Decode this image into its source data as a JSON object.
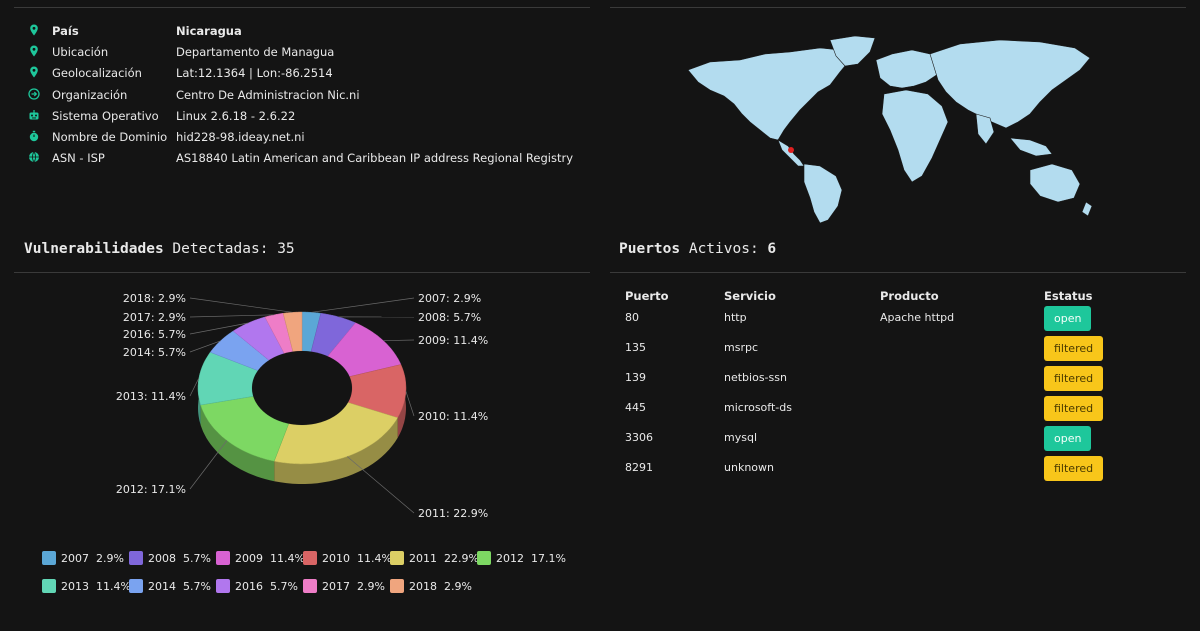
{
  "info": {
    "rows": [
      {
        "icon": "map-marker-icon",
        "label": "País",
        "value": "Nicaragua"
      },
      {
        "icon": "map-marker-icon",
        "label": "Ubicación",
        "value": "Departamento de Managua"
      },
      {
        "icon": "map-marker-icon",
        "label": "Geolocalización",
        "value": "Lat:12.1364 | Lon:-86.2514"
      },
      {
        "icon": "arrow-circle-icon",
        "label": "Organización",
        "value": "Centro De Administracion Nic.ni"
      },
      {
        "icon": "robot-icon",
        "label": "Sistema Operativo",
        "value": "Linux 2.6.18 - 2.6.22"
      },
      {
        "icon": "stopwatch-icon",
        "label": "Nombre de Dominio",
        "value": "hid228-98.ideay.net.ni"
      },
      {
        "icon": "globe-icon",
        "label": "ASN - ISP",
        "value": "AS18840 Latin American and Caribbean IP address Regional Registry"
      }
    ]
  },
  "vuln": {
    "title_bold": "Vulnerabilidades",
    "title_rest": " Detectadas: ",
    "count": "35"
  },
  "ports_section": {
    "title_bold": "Puertos",
    "title_rest": " Activos: ",
    "count": "6"
  },
  "chart_data": {
    "type": "pie",
    "donut": true,
    "categories": [
      "2007",
      "2008",
      "2009",
      "2010",
      "2011",
      "2012",
      "2013",
      "2014",
      "2016",
      "2017",
      "2018"
    ],
    "values": [
      2.9,
      5.7,
      11.4,
      11.4,
      22.9,
      17.1,
      11.4,
      5.7,
      5.7,
      2.9,
      2.9
    ],
    "labels": [
      "2007: 2.9%",
      "2008: 5.7%",
      "2009: 11.4%",
      "2010: 11.4%",
      "2011: 22.9%",
      "2012: 17.1%",
      "2013: 11.4%",
      "2014: 5.7%",
      "2016: 5.7%",
      "2017: 2.9%",
      "2018: 2.9%"
    ],
    "colors": [
      "#5ba7d6",
      "#7f67da",
      "#d862d2",
      "#d96565",
      "#dccf65",
      "#7dd863",
      "#61d6b5",
      "#7aa3f0",
      "#b177ee",
      "#ee7dc7",
      "#f0a57e"
    ],
    "legend": [
      {
        "name": "2007",
        "value": "2.9%"
      },
      {
        "name": "2008",
        "value": "5.7%"
      },
      {
        "name": "2009",
        "value": "11.4%"
      },
      {
        "name": "2010",
        "value": "11.4%"
      },
      {
        "name": "2011",
        "value": "22.9%"
      },
      {
        "name": "2012",
        "value": "17.1%"
      },
      {
        "name": "2013",
        "value": "11.4%"
      },
      {
        "name": "2014",
        "value": "5.7%"
      },
      {
        "name": "2016",
        "value": "5.7%"
      },
      {
        "name": "2017",
        "value": "2.9%"
      },
      {
        "name": "2018",
        "value": "2.9%"
      }
    ],
    "legend_placement": "bottom"
  },
  "ports": {
    "headers": [
      "Puerto",
      "Servicio",
      "Producto",
      "Estatus"
    ],
    "rows": [
      {
        "port": "80",
        "service": "http",
        "product": "Apache httpd",
        "status": "open"
      },
      {
        "port": "135",
        "service": "msrpc",
        "product": "",
        "status": "filtered"
      },
      {
        "port": "139",
        "service": "netbios-ssn",
        "product": "",
        "status": "filtered"
      },
      {
        "port": "445",
        "service": "microsoft-ds",
        "product": "",
        "status": "filtered"
      },
      {
        "port": "3306",
        "service": "mysql",
        "product": "",
        "status": "open"
      },
      {
        "port": "8291",
        "service": "unknown",
        "product": "",
        "status": "filtered"
      }
    ]
  },
  "colors": {
    "accent": "#1ec79b",
    "open": "#1ec79b",
    "filtered": "#f8c61a",
    "map_land": "#b3dcef",
    "map_marker": "#e02020"
  }
}
